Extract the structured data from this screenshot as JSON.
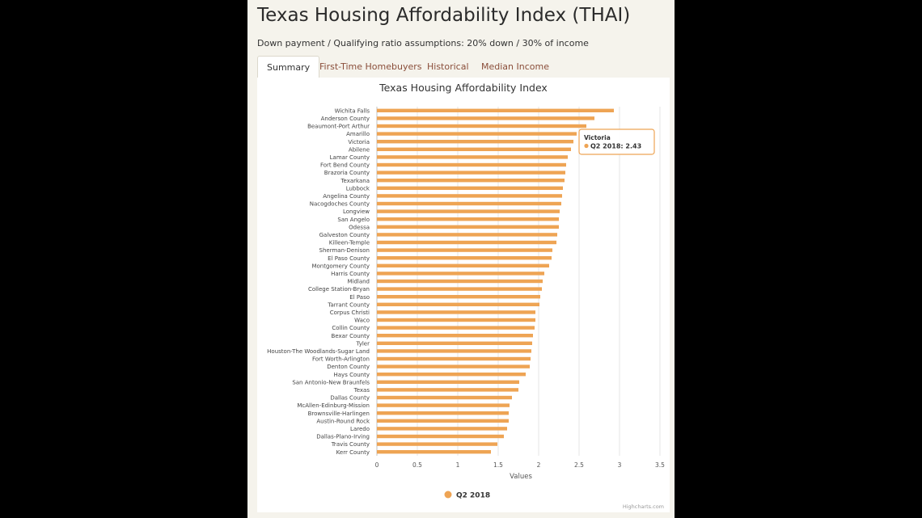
{
  "header": {
    "title": "Texas Housing Affordability Index (THAI)",
    "subtitle": "Down payment / Qualifying ratio assumptions: 20% down / 30% of income"
  },
  "tabs": [
    {
      "label": "Summary",
      "active": true
    },
    {
      "label": "First-Time Homebuyers",
      "active": false
    },
    {
      "label": "Historical",
      "active": false
    },
    {
      "label": "Median Income",
      "active": false
    }
  ],
  "colors": {
    "bar": "#eea454",
    "tab_text": "#8a4e3a",
    "tooltip_border": "#eea454"
  },
  "tooltip": {
    "title": "Victoria",
    "text": "Q2 2018: 2.43"
  },
  "credits": "Highcharts.com",
  "chart_data": {
    "type": "bar",
    "orientation": "horizontal",
    "title": "Texas Housing Affordability Index",
    "xlabel": "Values",
    "ylabel": "",
    "xlim": [
      0,
      3.5
    ],
    "x_ticks": [
      "0",
      "0.5",
      "1",
      "1.5",
      "2",
      "2.5",
      "3",
      "3.5"
    ],
    "grid": true,
    "legend_position": "bottom-center",
    "categories": [
      "Wichita Falls",
      "Anderson County",
      "Beaumont-Port Arthur",
      "Amarillo",
      "Victoria",
      "Abilene",
      "Lamar County",
      "Fort Bend County",
      "Brazoria County",
      "Texarkana",
      "Lubbock",
      "Angelina County",
      "Nacogdoches County",
      "Longview",
      "San Angelo",
      "Odessa",
      "Galveston County",
      "Killeen-Temple",
      "Sherman-Denison",
      "El Paso County",
      "Montgomery County",
      "Harris County",
      "Midland",
      "College Station-Bryan",
      "El Paso",
      "Tarrant County",
      "Corpus Christi",
      "Waco",
      "Collin County",
      "Bexar County",
      "Tyler",
      "Houston-The Woodlands-Sugar Land",
      "Fort Worth-Arlington",
      "Denton County",
      "Hays County",
      "San Antonio-New Braunfels",
      "Texas",
      "Dallas County",
      "McAllen-Edinburg-Mission",
      "Brownsville-Harlingen",
      "Austin-Round Rock",
      "Laredo",
      "Dallas-Plano-Irving",
      "Travis County",
      "Kerr County"
    ],
    "series": [
      {
        "name": "Q2 2018",
        "values": [
          2.93,
          2.69,
          2.59,
          2.47,
          2.43,
          2.4,
          2.36,
          2.34,
          2.33,
          2.32,
          2.3,
          2.29,
          2.28,
          2.26,
          2.25,
          2.25,
          2.23,
          2.22,
          2.17,
          2.16,
          2.13,
          2.07,
          2.05,
          2.04,
          2.02,
          2.01,
          1.96,
          1.96,
          1.95,
          1.93,
          1.92,
          1.91,
          1.9,
          1.89,
          1.84,
          1.76,
          1.75,
          1.67,
          1.64,
          1.63,
          1.63,
          1.61,
          1.57,
          1.49,
          1.41
        ]
      }
    ]
  }
}
